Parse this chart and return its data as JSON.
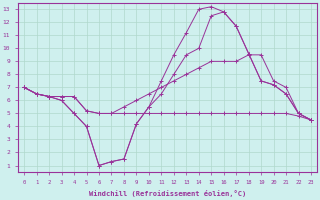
{
  "xlabel": "Windchill (Refroidissement éolien,°C)",
  "background_color": "#cff0ee",
  "grid_color": "#b0d8cc",
  "line_color": "#993399",
  "x_ticks": [
    0,
    1,
    2,
    3,
    4,
    5,
    6,
    7,
    8,
    9,
    10,
    11,
    12,
    13,
    14,
    15,
    16,
    17,
    18,
    19,
    20,
    21,
    22,
    23
  ],
  "y_ticks": [
    1,
    2,
    3,
    4,
    5,
    6,
    7,
    8,
    9,
    10,
    11,
    12,
    13
  ],
  "ylim": [
    0.5,
    13.5
  ],
  "xlim": [
    -0.5,
    23.5
  ],
  "lines": [
    {
      "x": [
        0,
        1,
        2,
        3,
        4,
        5,
        6,
        7,
        8,
        9,
        10,
        11,
        12,
        13,
        14,
        15,
        16,
        17,
        18,
        19,
        20,
        21,
        22,
        23
      ],
      "y": [
        7.0,
        6.5,
        6.3,
        6.3,
        6.3,
        5.2,
        5.0,
        5.0,
        5.0,
        5.0,
        5.0,
        5.0,
        5.0,
        5.0,
        5.0,
        5.0,
        5.0,
        5.0,
        5.0,
        5.0,
        5.0,
        5.0,
        4.8,
        4.5
      ]
    },
    {
      "x": [
        0,
        1,
        2,
        3,
        4,
        5,
        6,
        7,
        8,
        9,
        10,
        11,
        12,
        13,
        14,
        15,
        16,
        17,
        18,
        19,
        20,
        21,
        22,
        23
      ],
      "y": [
        7.0,
        6.5,
        6.3,
        6.3,
        6.3,
        5.2,
        5.0,
        5.0,
        5.5,
        6.0,
        6.5,
        7.0,
        7.5,
        8.0,
        8.5,
        9.0,
        9.0,
        9.0,
        9.5,
        9.5,
        7.5,
        7.0,
        5.0,
        4.5
      ]
    },
    {
      "x": [
        0,
        1,
        2,
        3,
        4,
        5,
        6,
        7,
        8,
        9,
        10,
        11,
        12,
        13,
        14,
        15,
        16,
        17,
        18,
        19,
        20,
        21,
        22,
        23
      ],
      "y": [
        7.0,
        6.5,
        6.3,
        6.0,
        5.0,
        4.0,
        1.0,
        1.3,
        1.5,
        4.2,
        5.5,
        7.5,
        9.5,
        11.2,
        13.0,
        13.2,
        12.8,
        11.7,
        9.6,
        7.5,
        7.2,
        6.5,
        5.0,
        4.5
      ]
    },
    {
      "x": [
        0,
        1,
        2,
        3,
        4,
        5,
        6,
        7,
        8,
        9,
        10,
        11,
        12,
        13,
        14,
        15,
        16,
        17,
        18,
        19,
        20,
        21,
        22,
        23
      ],
      "y": [
        7.0,
        6.5,
        6.3,
        6.0,
        5.0,
        4.0,
        1.0,
        1.3,
        1.5,
        4.2,
        5.5,
        6.5,
        8.0,
        9.5,
        10.0,
        12.5,
        12.8,
        11.7,
        9.6,
        7.5,
        7.2,
        6.5,
        5.0,
        4.5
      ]
    }
  ]
}
